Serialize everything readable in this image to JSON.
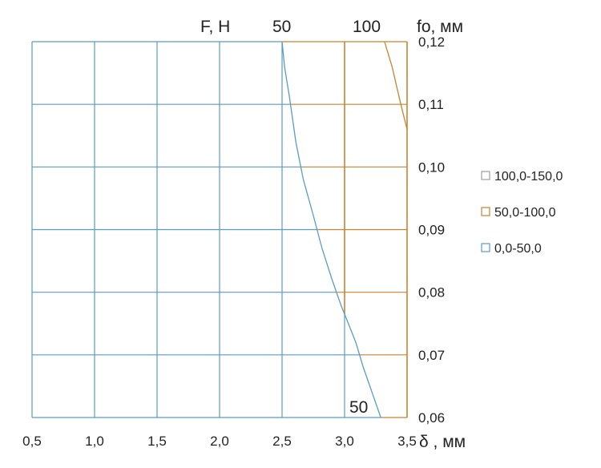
{
  "chart_data": {
    "type": "contour",
    "x_ticks": [
      "0,5",
      "1,0",
      "1,5",
      "2,0",
      "2,5",
      "3,0",
      "3,5"
    ],
    "y_ticks": [
      "0,12",
      "0,11",
      "0,10",
      "0,09",
      "0,08",
      "0,07",
      "0,06"
    ],
    "xlim": [
      0.5,
      3.5
    ],
    "ylim": [
      0.06,
      0.12
    ],
    "xlabel": "δ , мм",
    "ylabel_right": "fo, мм",
    "top_label": "F, H",
    "contour_labels": [
      "50",
      "100",
      "50"
    ],
    "contour_50": {
      "name": "50",
      "x": [
        2.5,
        2.52,
        2.56,
        2.61,
        2.67,
        2.74,
        2.82,
        2.9,
        2.97,
        3.03,
        3.09,
        3.15,
        3.22,
        3.29
      ],
      "y": [
        0.12,
        0.116,
        0.111,
        0.104,
        0.098,
        0.093,
        0.087,
        0.082,
        0.078,
        0.075,
        0.072,
        0.068,
        0.064,
        0.06
      ]
    },
    "contour_100": {
      "name": "100",
      "x": [
        3.32,
        3.38,
        3.45,
        3.5
      ],
      "y": [
        0.12,
        0.116,
        0.11,
        0.106
      ]
    },
    "series": [
      {
        "name": "100,0-150,0",
        "color": "#9e9e9e"
      },
      {
        "name": "50,0-100,0",
        "color": "#c8832f"
      },
      {
        "name": "0,0-50,0",
        "color": "#5a9bc6"
      }
    ],
    "grid": true,
    "legend_position": "right"
  }
}
